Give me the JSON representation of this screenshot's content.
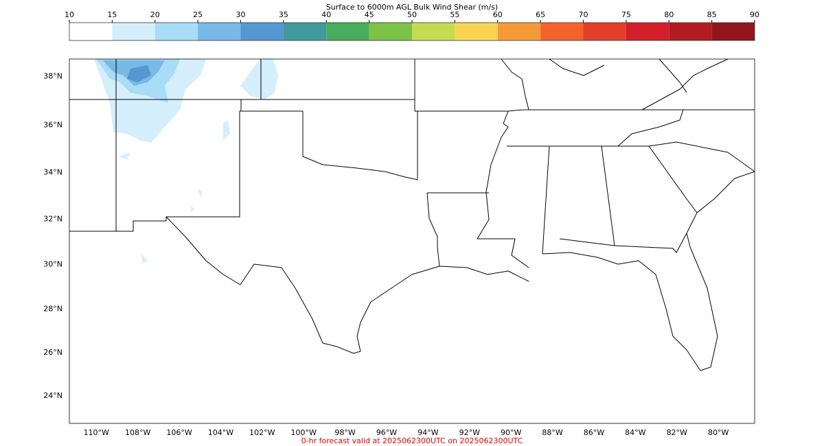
{
  "colorbar": {
    "title": "Surface to 6000m AGL Bulk Wind Shear (m/s)",
    "ticks": [
      10,
      15,
      20,
      25,
      30,
      35,
      40,
      45,
      50,
      55,
      60,
      65,
      70,
      75,
      80,
      85,
      90
    ],
    "colors": [
      "#ffffff",
      "#d4eefb",
      "#a8dcf7",
      "#78b9e6",
      "#5497d2",
      "#419a9b",
      "#48ad5c",
      "#7cc247",
      "#c5db52",
      "#f8d452",
      "#f69a37",
      "#f2632a",
      "#e23f2a",
      "#d21f2a",
      "#b31b22",
      "#90161c"
    ]
  },
  "map": {
    "xlim": [
      -111.3,
      -78.25
    ],
    "ylim": [
      22.7,
      38.7
    ],
    "lon_ticks": [
      {
        "value": -110,
        "label": "110°W"
      },
      {
        "value": -108,
        "label": "108°W"
      },
      {
        "value": -106,
        "label": "106°W"
      },
      {
        "value": -104,
        "label": "104°W"
      },
      {
        "value": -102,
        "label": "102°W"
      },
      {
        "value": -100,
        "label": "100°W"
      },
      {
        "value": -98,
        "label": "98°W"
      },
      {
        "value": -96,
        "label": "96°W"
      },
      {
        "value": -94,
        "label": "94°W"
      },
      {
        "value": -92,
        "label": "92°W"
      },
      {
        "value": -90,
        "label": "90°W"
      },
      {
        "value": -88,
        "label": "88°W"
      },
      {
        "value": -86,
        "label": "86°W"
      },
      {
        "value": -84,
        "label": "84°W"
      },
      {
        "value": -82,
        "label": "82°W"
      },
      {
        "value": -80,
        "label": "80°W"
      }
    ],
    "lat_ticks": [
      {
        "value": 38,
        "label": "38°N"
      },
      {
        "value": 36,
        "label": "36°N"
      },
      {
        "value": 34,
        "label": "34°N"
      },
      {
        "value": 32,
        "label": "32°N"
      },
      {
        "value": 30,
        "label": "30°N"
      },
      {
        "value": 28,
        "label": "28°N"
      },
      {
        "value": 26,
        "label": "26°N"
      },
      {
        "value": 24,
        "label": "24°N"
      }
    ]
  },
  "footer": "0-hr forecast valid at 2025062300UTC on 2025062300UTC"
}
